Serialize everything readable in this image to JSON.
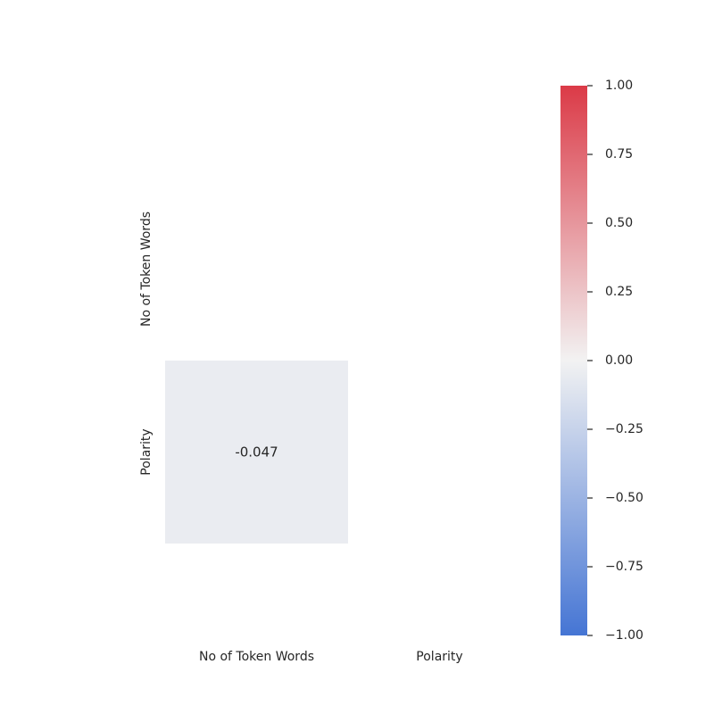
{
  "chart_data": {
    "type": "heatmap",
    "row_labels": [
      "No of Token Words",
      "Polarity"
    ],
    "column_labels": [
      "No of Token Words",
      "Polarity"
    ],
    "mask": "upper-triangle-including-diagonal",
    "cells": [
      {
        "row": 1,
        "col": 0,
        "value": -0.047,
        "label": "-0.047"
      }
    ],
    "colorbar": {
      "vmin": -1.0,
      "vmax": 1.0,
      "ticks": [
        1.0,
        0.75,
        0.5,
        0.25,
        0.0,
        -0.25,
        -0.5,
        -0.75,
        -1.0
      ],
      "tick_labels": [
        "1.00",
        "0.75",
        "0.50",
        "0.25",
        "0.00",
        "−0.25",
        "−0.50",
        "−0.75",
        "−1.00"
      ],
      "low_color": "#4575d4",
      "mid_color": "#f2f2f2",
      "high_color": "#db3a47"
    }
  }
}
